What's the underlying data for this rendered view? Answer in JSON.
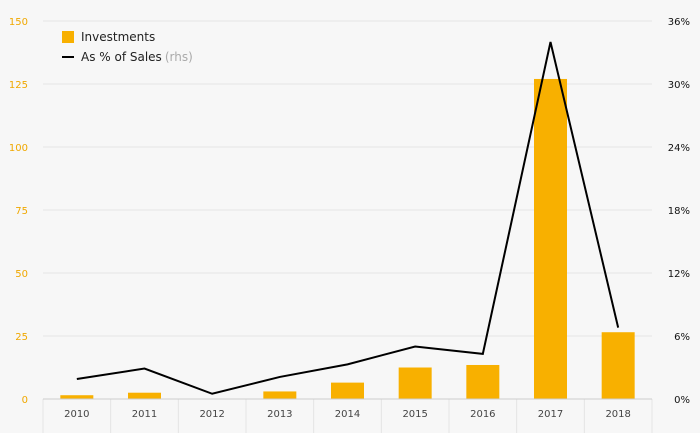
{
  "colors": {
    "bar": "#f8b000",
    "line": "#000000",
    "left_axis_text": "#f0a800",
    "right_axis_text": "#111111",
    "x_axis_text": "#444444",
    "grid": "#e4e4e4"
  },
  "legend": {
    "items": [
      {
        "label": "Investments",
        "suffix": ""
      },
      {
        "label": "As % of Sales",
        "suffix": "(rhs)"
      }
    ]
  },
  "chart_data": {
    "type": "bar",
    "categories": [
      "2010",
      "2011",
      "2012",
      "2013",
      "2014",
      "2015",
      "2016",
      "2017",
      "2018"
    ],
    "series": [
      {
        "name": "Investments",
        "type": "bar",
        "axis": "left",
        "values": [
          1.5,
          2.5,
          0,
          3,
          6.5,
          12.5,
          13.5,
          127,
          26.5
        ]
      },
      {
        "name": "As % of Sales (rhs)",
        "type": "line",
        "axis": "right",
        "values": [
          1.9,
          2.9,
          0.5,
          2.1,
          3.3,
          5.0,
          4.3,
          34.0,
          6.8
        ]
      }
    ],
    "ylim": [
      0,
      150
    ],
    "yticks": [
      "0",
      "25",
      "50",
      "75",
      "100",
      "125",
      "150"
    ],
    "y2lim": [
      0,
      36
    ],
    "y2ticks": [
      "0%",
      "6%",
      "12%",
      "18%",
      "24%",
      "30%",
      "36%"
    ],
    "grid": true,
    "legend_position": "top-left"
  }
}
